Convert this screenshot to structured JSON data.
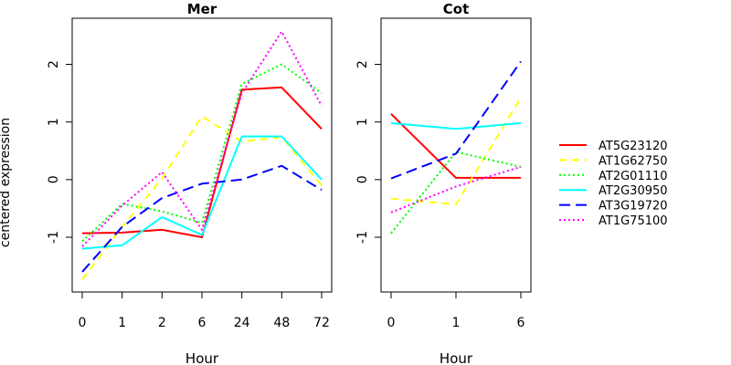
{
  "figure": {
    "ylabel": "centered expression",
    "legend_placement": "right"
  },
  "chart_data": [
    {
      "type": "line",
      "title": "Mer",
      "xlabel": "Hour",
      "ylabel": "centered expression",
      "categories": [
        "0",
        "1",
        "2",
        "6",
        "24",
        "48",
        "72"
      ],
      "ylim": [
        -1.95,
        2.8
      ],
      "yticks": [
        -1,
        0,
        1,
        2
      ],
      "grid": false,
      "series": [
        {
          "name": "AT5G23120",
          "color": "#ff0000",
          "dash": "solid",
          "values": [
            -0.93,
            -0.92,
            -0.87,
            -1.0,
            1.56,
            1.6,
            0.88
          ]
        },
        {
          "name": "AT1G62750",
          "color": "#ffff00",
          "dash": "dashed",
          "values": [
            -1.73,
            -0.82,
            0.02,
            1.1,
            0.66,
            0.74,
            -0.1
          ]
        },
        {
          "name": "AT2G01110",
          "color": "#00ff00",
          "dash": "dotted",
          "values": [
            -1.07,
            -0.42,
            -0.55,
            -0.75,
            1.66,
            2.0,
            1.5
          ]
        },
        {
          "name": "AT2G30950",
          "color": "#00ffff",
          "dash": "solid",
          "values": [
            -1.2,
            -1.14,
            -0.65,
            -0.96,
            0.75,
            0.75,
            0.0
          ]
        },
        {
          "name": "AT3G19720",
          "color": "#0000ff",
          "dash": "longdash",
          "values": [
            -1.6,
            -0.82,
            -0.32,
            -0.07,
            0.0,
            0.24,
            -0.18
          ]
        },
        {
          "name": "AT1G75100",
          "color": "#ff00ff",
          "dash": "dotted",
          "values": [
            -1.16,
            -0.45,
            0.13,
            -0.87,
            1.5,
            2.57,
            1.28
          ]
        }
      ]
    },
    {
      "type": "line",
      "title": "Cot",
      "xlabel": "Hour",
      "ylabel": "",
      "categories": [
        "0",
        "1",
        "6"
      ],
      "ylim": [
        -1.95,
        2.8
      ],
      "yticks": [
        -1,
        0,
        1,
        2
      ],
      "grid": false,
      "series": [
        {
          "name": "AT5G23120",
          "color": "#ff0000",
          "dash": "solid",
          "values": [
            1.14,
            0.03,
            0.03
          ]
        },
        {
          "name": "AT1G62750",
          "color": "#ffff00",
          "dash": "dashed",
          "values": [
            -0.33,
            -0.43,
            1.42
          ]
        },
        {
          "name": "AT2G01110",
          "color": "#00ff00",
          "dash": "dotted",
          "values": [
            -0.93,
            0.48,
            0.22
          ]
        },
        {
          "name": "AT2G30950",
          "color": "#00ffff",
          "dash": "solid",
          "values": [
            0.98,
            0.88,
            0.98
          ]
        },
        {
          "name": "AT3G19720",
          "color": "#0000ff",
          "dash": "longdash",
          "values": [
            0.02,
            0.45,
            2.05
          ]
        },
        {
          "name": "AT1G75100",
          "color": "#ff00ff",
          "dash": "dotted",
          "values": [
            -0.57,
            -0.12,
            0.22
          ]
        }
      ]
    }
  ],
  "legend": {
    "entries": [
      {
        "label": "AT5G23120",
        "color": "#ff0000",
        "dash": "solid"
      },
      {
        "label": "AT1G62750",
        "color": "#ffff00",
        "dash": "dashed"
      },
      {
        "label": "AT2G01110",
        "color": "#00ff00",
        "dash": "dotted"
      },
      {
        "label": "AT2G30950",
        "color": "#00ffff",
        "dash": "solid"
      },
      {
        "label": "AT3G19720",
        "color": "#0000ff",
        "dash": "longdash"
      },
      {
        "label": "AT1G75100",
        "color": "#ff00ff",
        "dash": "dotted"
      }
    ]
  }
}
